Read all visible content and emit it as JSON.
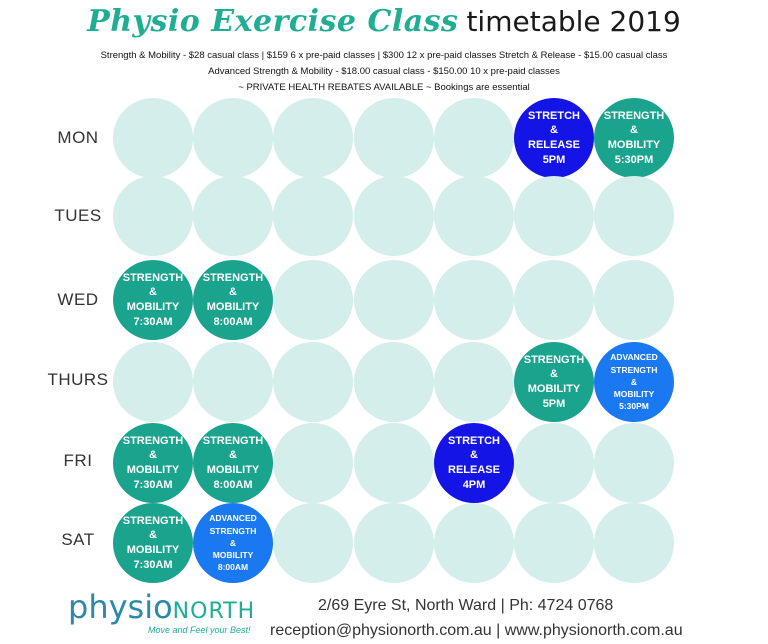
{
  "title": {
    "script": "Physio Exercise Class",
    "plain": "timetable 2019"
  },
  "subtitle": {
    "line1": "Strength & Mobility - $28 casual class | $159 6 x pre-paid classes  | $300 12 x pre-paid classes Stretch & Release - $15.00 casual class",
    "line2": "Advanced Strength & Mobility - $18.00 casual class - $150.00 10 x pre-paid classes",
    "line3": "~ PRIVATE HEALTH REBATES AVAILABLE ~ Bookings are essential"
  },
  "days": [
    "MON",
    "TUES",
    "WED",
    "THURS",
    "FRI",
    "SAT"
  ],
  "colors": {
    "empty": "#d3eeeb",
    "strength": "#1aa38d",
    "stretch": "#1414e6",
    "advanced": "#1a78f0",
    "brand_blue": "#2a8aa8",
    "brand_green": "#1fae93"
  },
  "sessions": [
    {
      "day": 0,
      "slot": 5,
      "kind": "stretch",
      "lines": [
        "STRETCH",
        "&",
        "RELEASE",
        "5PM"
      ]
    },
    {
      "day": 0,
      "slot": 6,
      "kind": "strength",
      "lines": [
        "STRENGTH",
        "&",
        "MOBILITY",
        "5:30PM"
      ]
    },
    {
      "day": 2,
      "slot": 0,
      "kind": "strength",
      "lines": [
        "STRENGTH",
        "&",
        "MOBILITY",
        "7:30AM"
      ]
    },
    {
      "day": 2,
      "slot": 1,
      "kind": "strength",
      "lines": [
        "STRENGTH",
        "&",
        "MOBILITY",
        "8:00AM"
      ]
    },
    {
      "day": 3,
      "slot": 5,
      "kind": "strength",
      "lines": [
        "STRENGTH",
        "&",
        "MOBILITY",
        "5PM"
      ]
    },
    {
      "day": 3,
      "slot": 6,
      "kind": "advanced",
      "lines": [
        "ADVANCED",
        "STRENGTH",
        "&",
        "MOBILITY",
        "5:30PM"
      ]
    },
    {
      "day": 4,
      "slot": 0,
      "kind": "strength",
      "lines": [
        "STRENGTH",
        "&",
        "MOBILITY",
        "7:30AM"
      ]
    },
    {
      "day": 4,
      "slot": 1,
      "kind": "strength",
      "lines": [
        "STRENGTH",
        "&",
        "MOBILITY",
        "8:00AM"
      ]
    },
    {
      "day": 4,
      "slot": 4,
      "kind": "stretch",
      "lines": [
        "STRETCH",
        "&",
        "RELEASE",
        "4PM"
      ]
    },
    {
      "day": 5,
      "slot": 0,
      "kind": "strength",
      "lines": [
        "STRENGTH",
        "&",
        "MOBILITY",
        "7:30AM"
      ]
    },
    {
      "day": 5,
      "slot": 1,
      "kind": "advanced",
      "lines": [
        "ADVANCED",
        "STRENGTH",
        "&",
        "MOBILITY",
        "8:00AM"
      ]
    }
  ],
  "footer": {
    "logo_physio": "physio",
    "logo_north": "NORTH",
    "tagline": "Move and Feel your Best!",
    "address": "2/69 Eyre St, North Ward | Ph: 4724 0768",
    "contact": "reception@physionorth.com.au | www.physionorth.com.au"
  }
}
